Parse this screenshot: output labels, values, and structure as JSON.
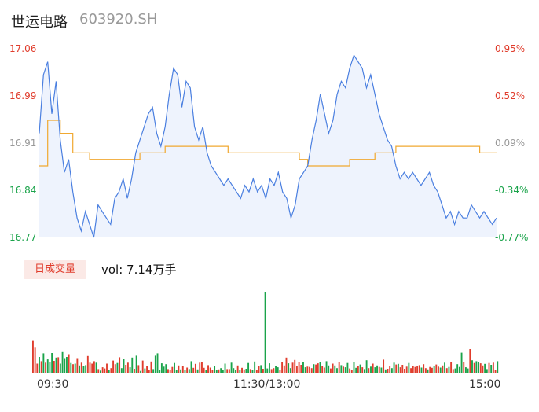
{
  "header": {
    "name": "世运电路",
    "code": "603920.SH"
  },
  "colors": {
    "up": "#e03c2c",
    "down": "#1aa34a",
    "neutral": "#999999",
    "price_line": "#4a7fe0",
    "avg_line": "#f0a830",
    "area_fill": "#eef3fd"
  },
  "volume": {
    "button_label": "日成交量",
    "text": "vol: 7.14万手"
  },
  "chart_data": [
    {
      "type": "line",
      "y_ticks": [
        "17.06",
        "16.99",
        "16.91",
        "16.84",
        "16.77"
      ],
      "y_ticks_right": [
        "0.95%",
        "0.52%",
        "0.09%",
        "-0.34%",
        "-0.77%"
      ],
      "tick_colors": [
        "up",
        "up",
        "neutral",
        "down",
        "down"
      ],
      "x_ticks": [
        "09:30",
        "11:30/13:00",
        "15:00"
      ],
      "ylim": [
        16.77,
        17.06
      ],
      "series": [
        {
          "role": "price",
          "points": [
            [
              0,
              16.93
            ],
            [
              2,
              17.02
            ],
            [
              4,
              17.04
            ],
            [
              6,
              16.96
            ],
            [
              8,
              17.01
            ],
            [
              10,
              16.92
            ],
            [
              12,
              16.87
            ],
            [
              14,
              16.89
            ],
            [
              16,
              16.84
            ],
            [
              18,
              16.8
            ],
            [
              20,
              16.78
            ],
            [
              22,
              16.81
            ],
            [
              24,
              16.79
            ],
            [
              26,
              16.77
            ],
            [
              28,
              16.82
            ],
            [
              30,
              16.81
            ],
            [
              32,
              16.8
            ],
            [
              34,
              16.79
            ],
            [
              36,
              16.83
            ],
            [
              38,
              16.84
            ],
            [
              40,
              16.86
            ],
            [
              42,
              16.83
            ],
            [
              44,
              16.86
            ],
            [
              46,
              16.9
            ],
            [
              48,
              16.92
            ],
            [
              50,
              16.94
            ],
            [
              52,
              16.96
            ],
            [
              54,
              16.97
            ],
            [
              56,
              16.93
            ],
            [
              58,
              16.91
            ],
            [
              60,
              16.94
            ],
            [
              62,
              16.99
            ],
            [
              64,
              17.03
            ],
            [
              66,
              17.02
            ],
            [
              68,
              16.97
            ],
            [
              70,
              17.01
            ],
            [
              72,
              17.0
            ],
            [
              74,
              16.94
            ],
            [
              76,
              16.92
            ],
            [
              78,
              16.94
            ],
            [
              80,
              16.9
            ],
            [
              82,
              16.88
            ],
            [
              84,
              16.87
            ],
            [
              86,
              16.86
            ],
            [
              88,
              16.85
            ],
            [
              90,
              16.86
            ],
            [
              92,
              16.85
            ],
            [
              94,
              16.84
            ],
            [
              96,
              16.83
            ],
            [
              98,
              16.85
            ],
            [
              100,
              16.84
            ],
            [
              102,
              16.86
            ],
            [
              104,
              16.84
            ],
            [
              106,
              16.85
            ],
            [
              108,
              16.83
            ],
            [
              110,
              16.86
            ],
            [
              112,
              16.85
            ],
            [
              114,
              16.87
            ],
            [
              116,
              16.84
            ],
            [
              118,
              16.83
            ],
            [
              120,
              16.8
            ],
            [
              122,
              16.82
            ],
            [
              124,
              16.86
            ],
            [
              126,
              16.87
            ],
            [
              128,
              16.88
            ],
            [
              130,
              16.92
            ],
            [
              132,
              16.95
            ],
            [
              134,
              16.99
            ],
            [
              136,
              16.96
            ],
            [
              138,
              16.93
            ],
            [
              140,
              16.95
            ],
            [
              142,
              16.99
            ],
            [
              144,
              17.01
            ],
            [
              146,
              17.0
            ],
            [
              148,
              17.03
            ],
            [
              150,
              17.05
            ],
            [
              152,
              17.04
            ],
            [
              154,
              17.03
            ],
            [
              156,
              17.0
            ],
            [
              158,
              17.02
            ],
            [
              160,
              16.99
            ],
            [
              162,
              16.96
            ],
            [
              164,
              16.94
            ],
            [
              166,
              16.92
            ],
            [
              168,
              16.91
            ],
            [
              170,
              16.88
            ],
            [
              172,
              16.86
            ],
            [
              174,
              16.87
            ],
            [
              176,
              16.86
            ],
            [
              178,
              16.87
            ],
            [
              180,
              16.86
            ],
            [
              182,
              16.85
            ],
            [
              184,
              16.86
            ],
            [
              186,
              16.87
            ],
            [
              188,
              16.85
            ],
            [
              190,
              16.84
            ],
            [
              192,
              16.82
            ],
            [
              194,
              16.8
            ],
            [
              196,
              16.81
            ],
            [
              198,
              16.79
            ],
            [
              200,
              16.81
            ],
            [
              202,
              16.8
            ],
            [
              204,
              16.8
            ],
            [
              206,
              16.82
            ],
            [
              208,
              16.81
            ],
            [
              210,
              16.8
            ],
            [
              212,
              16.81
            ],
            [
              214,
              16.8
            ],
            [
              216,
              16.79
            ],
            [
              218,
              16.8
            ]
          ]
        },
        {
          "role": "average",
          "points": [
            [
              0,
              16.88
            ],
            [
              4,
              16.95
            ],
            [
              10,
              16.93
            ],
            [
              16,
              16.9
            ],
            [
              24,
              16.89
            ],
            [
              40,
              16.89
            ],
            [
              48,
              16.9
            ],
            [
              60,
              16.91
            ],
            [
              82,
              16.91
            ],
            [
              90,
              16.9
            ],
            [
              120,
              16.9
            ],
            [
              124,
              16.89
            ],
            [
              128,
              16.88
            ],
            [
              136,
              16.88
            ],
            [
              148,
              16.89
            ],
            [
              160,
              16.9
            ],
            [
              170,
              16.91
            ],
            [
              200,
              16.91
            ],
            [
              210,
              16.9
            ],
            [
              218,
              16.9
            ]
          ]
        }
      ]
    },
    {
      "type": "bar",
      "title": "日成交量",
      "total_volume": "7.14万手",
      "ylim": [
        0,
        2650
      ],
      "values": [
        1050,
        850,
        300,
        520,
        380,
        640,
        330,
        440,
        350,
        650,
        390,
        500,
        510,
        300,
        680,
        480,
        520,
        610,
        320,
        280,
        300,
        480,
        240,
        330,
        220,
        250,
        550,
        330,
        300,
        380,
        330,
        120,
        70,
        180,
        140,
        300,
        100,
        150,
        400,
        280,
        320,
        510,
        150,
        450,
        260,
        330,
        180,
        500,
        130,
        560,
        250,
        60,
        400,
        140,
        210,
        100,
        370,
        120,
        560,
        640,
        80,
        310,
        200,
        280,
        120,
        100,
        190,
        320,
        90,
        240,
        110,
        220,
        90,
        170,
        120,
        380,
        160,
        290,
        110,
        330,
        340,
        160,
        80,
        250,
        170,
        90,
        210,
        90,
        110,
        150,
        80,
        300,
        120,
        120,
        330,
        150,
        100,
        240,
        80,
        160,
        110,
        130,
        320,
        120,
        80,
        370,
        100,
        230,
        250,
        130,
        2650,
        140,
        310,
        120,
        150,
        220,
        180,
        90,
        350,
        240,
        500,
        310,
        150,
        330,
        420,
        230,
        360,
        260,
        350,
        180,
        200,
        190,
        150,
        280,
        270,
        310,
        350,
        230,
        170,
        380,
        240,
        140,
        300,
        240,
        150,
        350,
        250,
        200,
        180,
        320,
        140,
        90,
        360,
        160,
        230,
        270,
        180,
        120,
        410,
        150,
        200,
        300,
        180,
        240,
        190,
        170,
        430,
        110,
        130,
        210,
        150,
        330,
        270,
        290,
        180,
        260,
        130,
        200,
        320,
        150,
        220,
        190,
        210,
        250,
        170,
        280,
        150,
        110,
        190,
        160,
        220,
        270,
        200,
        170,
        240,
        330,
        150,
        190,
        360,
        120,
        140,
        280,
        190,
        660,
        340,
        180,
        140,
        780,
        410,
        320,
        380,
        350,
        310,
        240,
        290,
        120,
        320,
        260,
        330,
        100,
        380
      ],
      "colors": [
        "up",
        "up",
        "up",
        "down",
        "up",
        "down",
        "up",
        "down",
        "down",
        "down",
        "up",
        "down",
        "up",
        "down",
        "down",
        "down",
        "down",
        "up",
        "down",
        "up",
        "down",
        "up",
        "down",
        "up",
        "down",
        "down",
        "up",
        "up",
        "up",
        "up",
        "down",
        "up",
        "down",
        "up",
        "up",
        "up",
        "down",
        "up",
        "up",
        "up",
        "down",
        "up",
        "down",
        "down",
        "up",
        "up",
        "down",
        "down",
        "up",
        "down",
        "up",
        "down",
        "up",
        "down",
        "up",
        "up",
        "up",
        "down",
        "down",
        "down",
        "down",
        "down",
        "down",
        "down",
        "up",
        "up",
        "up",
        "down",
        "down",
        "up",
        "down",
        "up",
        "down",
        "up",
        "down",
        "down",
        "up",
        "up",
        "down",
        "up",
        "up",
        "up",
        "down",
        "up",
        "up",
        "up",
        "down",
        "down",
        "up",
        "down",
        "down",
        "down",
        "up",
        "up",
        "down",
        "down",
        "down",
        "up",
        "down",
        "up",
        "up",
        "down",
        "down",
        "up",
        "down",
        "down",
        "up",
        "up",
        "down",
        "up",
        "down",
        "down",
        "down",
        "up",
        "up",
        "down",
        "down",
        "up",
        "up",
        "up",
        "up",
        "down",
        "down",
        "up",
        "up",
        "up",
        "up",
        "up",
        "down",
        "down",
        "up",
        "up",
        "up",
        "down",
        "up",
        "up",
        "down",
        "up",
        "up",
        "down",
        "down",
        "up",
        "up",
        "down",
        "down",
        "up",
        "down",
        "up",
        "down",
        "down",
        "up",
        "up",
        "down",
        "down",
        "up",
        "down",
        "up",
        "down",
        "down",
        "up",
        "down",
        "up",
        "down",
        "down",
        "up",
        "down",
        "up",
        "down",
        "up",
        "up",
        "down",
        "down",
        "up",
        "down",
        "up",
        "up",
        "up",
        "up",
        "down",
        "up",
        "up",
        "up",
        "up",
        "up",
        "down",
        "up",
        "up",
        "down",
        "up",
        "up",
        "down",
        "up",
        "up",
        "down",
        "up",
        "down",
        "up",
        "down",
        "up",
        "up",
        "down",
        "down",
        "down",
        "down",
        "up",
        "down",
        "down",
        "up",
        "down",
        "up",
        "down",
        "down",
        "up",
        "up",
        "down",
        "down",
        "up",
        "down",
        "up",
        "up",
        "down",
        "up",
        "up",
        "down",
        "up",
        "down",
        "up",
        "up"
      ]
    }
  ]
}
